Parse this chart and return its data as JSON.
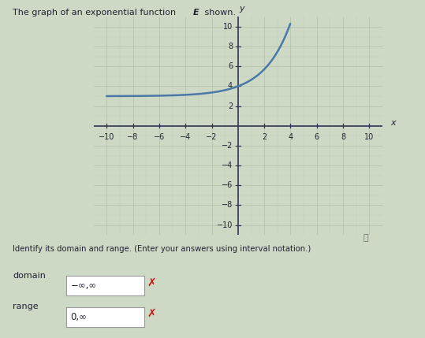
{
  "title_part1": "The graph of an exponential function ",
  "title_symbol": "E",
  "title_part2": " shown.",
  "xlabel": "x",
  "ylabel": "y",
  "xlim": [
    -11,
    11
  ],
  "ylim": [
    -11,
    11
  ],
  "xticks": [
    -10,
    -8,
    -6,
    -4,
    -2,
    2,
    4,
    6,
    8,
    10
  ],
  "yticks": [
    -10,
    -8,
    -6,
    -4,
    -2,
    2,
    4,
    6,
    8,
    10
  ],
  "curve_color": "#4a78a8",
  "bg_color": "#cdd9c5",
  "grid_color": "#afc0a8",
  "axis_color": "#333355",
  "text_color": "#222233",
  "instruction": "Identify its domain and range. (Enter your answers using interval notation.)",
  "domain_label": "domain",
  "range_label": "range",
  "domain_text": "−∞,∞",
  "range_text": "0,∞",
  "box_color": "#ffffff",
  "x_color": "#cc1111",
  "info_circle": "ⓘ",
  "curve_x_start": -10,
  "curve_x_end": 3.98,
  "asymptote_y": 3.0,
  "curve_scale": 0.5
}
